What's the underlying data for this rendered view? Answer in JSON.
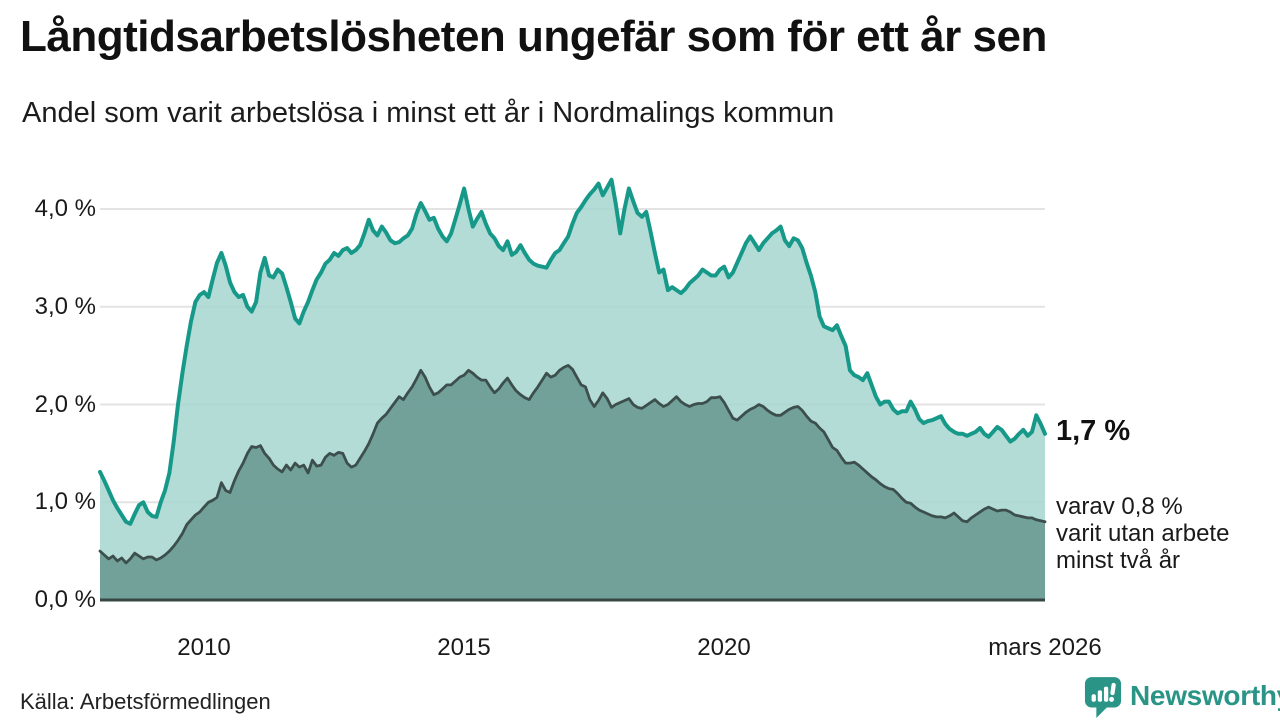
{
  "header": {
    "title": "Långtidsarbetslösheten ungefär som för ett år sen",
    "subtitle": "Andel som varit arbetslösa i minst ett år i Nordmalings kommun"
  },
  "annotations": {
    "end_value": "1,7 %",
    "sub_line1": "varav 0,8 %",
    "sub_line2": "varit utan arbete",
    "sub_line3": "minst två år"
  },
  "footer": {
    "source": "Källa: Arbetsförmedlingen",
    "brand": "Newsworthy"
  },
  "colors": {
    "accent_teal": "#17998a",
    "light_fill": "#a7d6d0",
    "dark_line": "#3c4f4c",
    "dark_fill": "#6f9d97",
    "gridline": "#e3e3e3",
    "baseline": "#374744",
    "brand_teal": "#2a9486"
  },
  "chart_data": {
    "type": "area",
    "title": "Långtidsarbetslösheten ungefär som för ett år sen",
    "subtitle": "Andel som varit arbetslösa i minst ett år i Nordmalings kommun",
    "x_interval": "monthly",
    "x_start": "2008-01",
    "x_end": "2026-03",
    "ylim": [
      0,
      4.4
    ],
    "grid": true,
    "y_ticks": [
      {
        "value": 4,
        "label": "4,0 %"
      },
      {
        "value": 3,
        "label": "3,0 %"
      },
      {
        "value": 2,
        "label": "2,0 %"
      },
      {
        "value": 1,
        "label": "1,0 %"
      },
      {
        "value": 0,
        "label": "0,0 %"
      }
    ],
    "x_ticks": [
      {
        "month": 24,
        "label": "2010"
      },
      {
        "month": 84,
        "label": "2015"
      },
      {
        "month": 144,
        "label": "2020"
      },
      {
        "month": 218,
        "label": "mars 2026"
      }
    ],
    "series": [
      {
        "name": "Andel som varit arbetslösa i minst ett år",
        "color": "#17998a",
        "fill": "#a7d6d0",
        "end_label": "1,7 %",
        "values": [
          1.31,
          1.22,
          1.12,
          1.02,
          0.94,
          0.87,
          0.8,
          0.78,
          0.88,
          0.97,
          1.0,
          0.9,
          0.86,
          0.85,
          1.0,
          1.12,
          1.3,
          1.62,
          2.0,
          2.32,
          2.6,
          2.85,
          3.05,
          3.12,
          3.15,
          3.1,
          3.28,
          3.45,
          3.55,
          3.42,
          3.25,
          3.15,
          3.1,
          3.12,
          3.0,
          2.95,
          3.05,
          3.35,
          3.5,
          3.32,
          3.3,
          3.38,
          3.34,
          3.2,
          3.05,
          2.88,
          2.83,
          2.95,
          3.05,
          3.17,
          3.28,
          3.35,
          3.44,
          3.48,
          3.55,
          3.52,
          3.58,
          3.6,
          3.55,
          3.58,
          3.63,
          3.75,
          3.89,
          3.78,
          3.73,
          3.82,
          3.76,
          3.68,
          3.65,
          3.66,
          3.7,
          3.73,
          3.8,
          3.95,
          4.06,
          3.98,
          3.89,
          3.91,
          3.8,
          3.72,
          3.67,
          3.75,
          3.9,
          4.05,
          4.21,
          4.0,
          3.82,
          3.9,
          3.97,
          3.85,
          3.75,
          3.7,
          3.62,
          3.58,
          3.67,
          3.53,
          3.56,
          3.63,
          3.55,
          3.48,
          3.44,
          3.42,
          3.41,
          3.4,
          3.48,
          3.55,
          3.58,
          3.65,
          3.72,
          3.85,
          3.96,
          4.02,
          4.09,
          4.15,
          4.2,
          4.26,
          4.14,
          4.22,
          4.3,
          4.05,
          3.75,
          4.0,
          4.21,
          4.08,
          3.96,
          3.92,
          3.97,
          3.77,
          3.55,
          3.35,
          3.38,
          3.17,
          3.2,
          3.17,
          3.14,
          3.18,
          3.24,
          3.28,
          3.32,
          3.38,
          3.35,
          3.32,
          3.32,
          3.38,
          3.41,
          3.3,
          3.35,
          3.45,
          3.55,
          3.65,
          3.72,
          3.65,
          3.58,
          3.65,
          3.7,
          3.75,
          3.78,
          3.82,
          3.68,
          3.62,
          3.7,
          3.68,
          3.6,
          3.45,
          3.32,
          3.15,
          2.9,
          2.8,
          2.78,
          2.76,
          2.81,
          2.7,
          2.6,
          2.35,
          2.3,
          2.28,
          2.25,
          2.32,
          2.2,
          2.08,
          2.0,
          2.03,
          2.03,
          1.95,
          1.91,
          1.93,
          1.93,
          2.03,
          1.95,
          1.85,
          1.81,
          1.83,
          1.84,
          1.86,
          1.88,
          1.8,
          1.75,
          1.72,
          1.7,
          1.7,
          1.68,
          1.7,
          1.72,
          1.76,
          1.7,
          1.67,
          1.72,
          1.77,
          1.74,
          1.68,
          1.62,
          1.65,
          1.7,
          1.74,
          1.68,
          1.72,
          1.89,
          1.8,
          1.7
        ]
      },
      {
        "name": "varav utan arbete minst två år",
        "color": "#3c4f4c",
        "fill": "#6f9d97",
        "end_label": "0,8 %",
        "values": [
          0.5,
          0.46,
          0.42,
          0.45,
          0.4,
          0.43,
          0.38,
          0.42,
          0.48,
          0.45,
          0.42,
          0.44,
          0.44,
          0.41,
          0.43,
          0.46,
          0.5,
          0.55,
          0.61,
          0.68,
          0.77,
          0.82,
          0.87,
          0.9,
          0.95,
          1.0,
          1.02,
          1.05,
          1.2,
          1.12,
          1.1,
          1.22,
          1.32,
          1.4,
          1.5,
          1.57,
          1.56,
          1.58,
          1.5,
          1.45,
          1.38,
          1.34,
          1.31,
          1.38,
          1.33,
          1.4,
          1.36,
          1.38,
          1.3,
          1.43,
          1.37,
          1.38,
          1.46,
          1.5,
          1.48,
          1.51,
          1.5,
          1.4,
          1.36,
          1.38,
          1.45,
          1.52,
          1.6,
          1.7,
          1.81,
          1.86,
          1.9,
          1.96,
          2.02,
          2.08,
          2.05,
          2.12,
          2.18,
          2.26,
          2.35,
          2.28,
          2.18,
          2.1,
          2.12,
          2.16,
          2.2,
          2.2,
          2.24,
          2.28,
          2.3,
          2.35,
          2.32,
          2.28,
          2.25,
          2.25,
          2.18,
          2.12,
          2.16,
          2.22,
          2.27,
          2.2,
          2.14,
          2.1,
          2.07,
          2.05,
          2.12,
          2.18,
          2.25,
          2.32,
          2.28,
          2.3,
          2.35,
          2.38,
          2.4,
          2.36,
          2.28,
          2.2,
          2.18,
          2.05,
          1.98,
          2.04,
          2.12,
          2.06,
          1.97,
          2.0,
          2.02,
          2.04,
          2.06,
          2.0,
          1.97,
          1.96,
          1.99,
          2.02,
          2.05,
          2.01,
          1.98,
          2.0,
          2.04,
          2.08,
          2.03,
          2.0,
          1.98,
          2.0,
          2.01,
          2.01,
          2.03,
          2.07,
          2.07,
          2.08,
          2.02,
          1.94,
          1.86,
          1.84,
          1.88,
          1.92,
          1.95,
          1.97,
          2.0,
          1.98,
          1.94,
          1.91,
          1.89,
          1.89,
          1.92,
          1.95,
          1.97,
          1.98,
          1.94,
          1.88,
          1.83,
          1.81,
          1.76,
          1.72,
          1.64,
          1.56,
          1.53,
          1.46,
          1.4,
          1.4,
          1.41,
          1.38,
          1.34,
          1.3,
          1.26,
          1.23,
          1.19,
          1.16,
          1.14,
          1.13,
          1.09,
          1.04,
          1.0,
          0.99,
          0.95,
          0.92,
          0.9,
          0.88,
          0.86,
          0.85,
          0.85,
          0.84,
          0.86,
          0.89,
          0.85,
          0.81,
          0.8,
          0.84,
          0.87,
          0.9,
          0.93,
          0.95,
          0.93,
          0.91,
          0.92,
          0.92,
          0.9,
          0.87,
          0.86,
          0.85,
          0.84,
          0.84,
          0.82,
          0.81,
          0.8
        ]
      }
    ]
  }
}
